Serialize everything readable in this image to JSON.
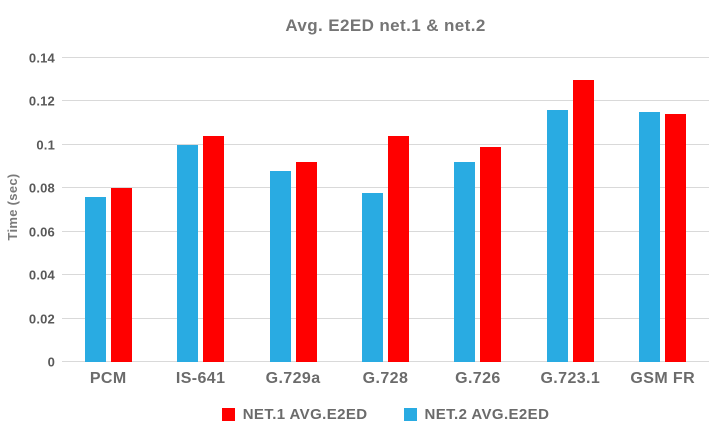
{
  "chart_data": {
    "type": "bar",
    "title": "Avg. E2ED net.1 & net.2",
    "xlabel": "",
    "ylabel": "Time (sec)",
    "ylim": [
      0,
      0.14
    ],
    "y_ticks": [
      "0",
      "0.02",
      "0.04",
      "0.06",
      "0.08",
      "0.1",
      "0.12",
      "0.14"
    ],
    "grid": true,
    "legend_position": "bottom",
    "categories": [
      "PCM",
      "IS-641",
      "G.729a",
      "G.728",
      "G.726",
      "G.723.1",
      "GSM FR"
    ],
    "series": [
      {
        "name": "NET.2 AVG.E2ED",
        "color": "#29ABE2",
        "values": [
          0.076,
          0.1,
          0.088,
          0.078,
          0.092,
          0.116,
          0.115
        ]
      },
      {
        "name": "NET.1 AVG.E2ED",
        "color": "#FF0000",
        "values": [
          0.08,
          0.104,
          0.092,
          0.104,
          0.099,
          0.13,
          0.114
        ]
      }
    ],
    "legend": [
      {
        "label": "NET.1 AVG.E2ED",
        "color": "#FF0000"
      },
      {
        "label": "NET.2 AVG.E2ED",
        "color": "#29ABE2"
      }
    ],
    "colors": {
      "background": "#ffffff",
      "gridline": "#d9d9d9",
      "title_text": "#757575",
      "tick_text": "#595959",
      "category_text": "#6b6b6b"
    }
  }
}
